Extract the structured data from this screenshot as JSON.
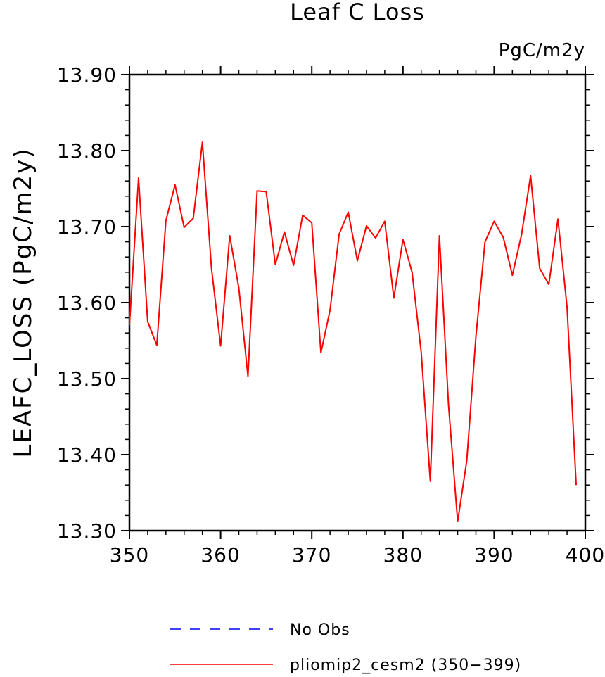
{
  "chart_data": {
    "type": "line",
    "title": "Leaf C Loss",
    "units_label": "PgC/m2y",
    "ylabel": "LEAFC_LOSS  (PgC/m2y)",
    "xlabel": "",
    "xlim": [
      350,
      400
    ],
    "ylim": [
      13.3,
      13.9
    ],
    "xticks": [
      "350",
      "360",
      "370",
      "380",
      "390",
      "400"
    ],
    "yticks": [
      "13.30",
      "13.40",
      "13.50",
      "13.60",
      "13.70",
      "13.80",
      "13.90"
    ],
    "x": [
      350,
      351,
      352,
      353,
      354,
      355,
      356,
      357,
      358,
      359,
      360,
      361,
      362,
      363,
      364,
      365,
      366,
      367,
      368,
      369,
      370,
      371,
      372,
      373,
      374,
      375,
      376,
      377,
      378,
      379,
      380,
      381,
      382,
      383,
      384,
      385,
      386,
      387,
      388,
      389,
      390,
      391,
      392,
      393,
      394,
      395,
      396,
      397,
      398,
      399
    ],
    "series": [
      {
        "name": "pliomip2_cesm2 (350−399)",
        "color": "#ff0000",
        "style": "solid",
        "values": [
          13.57,
          13.764,
          13.575,
          13.544,
          13.708,
          13.755,
          13.699,
          13.711,
          13.811,
          13.645,
          13.543,
          13.688,
          13.619,
          13.503,
          13.747,
          13.746,
          13.65,
          13.693,
          13.649,
          13.715,
          13.705,
          13.534,
          13.59,
          13.69,
          13.719,
          13.655,
          13.701,
          13.685,
          13.707,
          13.606,
          13.683,
          13.64,
          13.535,
          13.365,
          13.688,
          13.465,
          13.312,
          13.392,
          13.555,
          13.68,
          13.707,
          13.686,
          13.636,
          13.689,
          13.767,
          13.645,
          13.624,
          13.71,
          13.594,
          13.36
        ]
      }
    ],
    "legend": [
      {
        "label": "No Obs",
        "color": "#0000ff",
        "style": "dashed"
      },
      {
        "label": "pliomip2_cesm2 (350−399)",
        "color": "#ff0000",
        "style": "solid"
      }
    ],
    "legend_position": "bottom-center",
    "grid": false
  }
}
